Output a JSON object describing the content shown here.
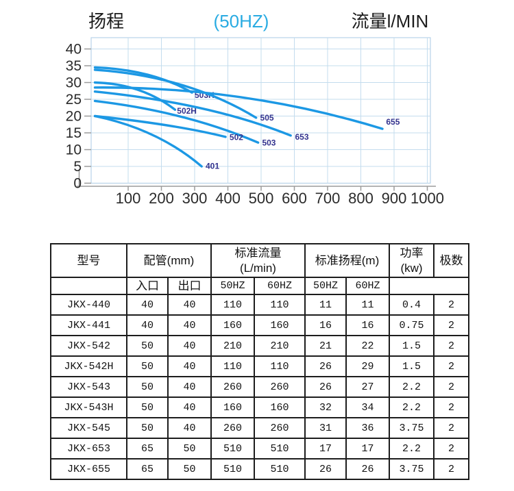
{
  "chart": {
    "ylabel_title": "扬程",
    "freq_title": "(50HZ)",
    "xlabel_title": "流量l/MIN",
    "colors": {
      "curve": "#1c98e4",
      "grid": "#c3dcee",
      "plot_border": "#b7d3e8",
      "axis_line": "#9b9b9b",
      "tick_text": "#2b2b2b",
      "freq_text": "#29abe2",
      "curve_label": "#32328e"
    },
    "x_ticks": [
      100,
      200,
      300,
      400,
      500,
      600,
      700,
      800,
      900,
      1000
    ],
    "y_ticks": [
      0,
      5,
      10,
      15,
      20,
      25,
      30,
      35,
      40
    ]
  },
  "chart_data": {
    "type": "line",
    "title": "(50HZ)",
    "xlabel": "流量l/MIN",
    "ylabel": "扬程",
    "xlim": [
      0,
      1080
    ],
    "ylim": [
      0,
      43
    ],
    "grid": true,
    "legend_position": "none",
    "series": [
      {
        "name": "503H",
        "points": [
          [
            0,
            34.5
          ],
          [
            160,
            32.3
          ],
          [
            292,
            27.0
          ]
        ],
        "label_at": [
          300,
          25.4
        ]
      },
      {
        "name": "505",
        "points": [
          [
            0,
            33.8
          ],
          [
            260,
            29.3
          ],
          [
            485,
            19.5
          ]
        ],
        "label_at": [
          497,
          18.7
        ]
      },
      {
        "name": "502H",
        "points": [
          [
            0,
            30.0
          ],
          [
            130,
            27.8
          ],
          [
            241,
            21.9
          ]
        ],
        "label_at": [
          247,
          20.7
        ]
      },
      {
        "name": "655",
        "points": [
          [
            0,
            28.5
          ],
          [
            440,
            25.6
          ],
          [
            865,
            16.2
          ]
        ],
        "label_at": [
          876,
          17.4
        ]
      },
      {
        "name": "653",
        "points": [
          [
            0,
            27.3
          ],
          [
            320,
            22.3
          ],
          [
            589,
            14.2
          ]
        ],
        "label_at": [
          602,
          13.0
        ]
      },
      {
        "name": "503",
        "points": [
          [
            0,
            24.5
          ],
          [
            260,
            19.8
          ],
          [
            491,
            12.1
          ]
        ],
        "label_at": [
          503,
          11.2
        ]
      },
      {
        "name": "502",
        "points": [
          [
            0,
            20.0
          ],
          [
            220,
            17.2
          ],
          [
            393,
            13.8
          ]
        ],
        "label_at": [
          405,
          12.9
        ]
      },
      {
        "name": "401",
        "points": [
          [
            0,
            20.0
          ],
          [
            175,
            14.3
          ],
          [
            321,
            5.0
          ]
        ],
        "label_at": [
          333,
          4.3
        ]
      }
    ]
  },
  "table": {
    "header": {
      "model": "型号",
      "piping": "配管(mm)",
      "inlet": "入口",
      "outlet": "出口",
      "flow_line1": "标准流量",
      "flow_line2": "(L/min)",
      "flow_50": "50HZ",
      "flow_60": "60HZ",
      "head": "标准扬程(m)",
      "head_50": "50HZ",
      "head_60": "60HZ",
      "power_line1": "功率",
      "power_line2": "(kw)",
      "poles": "极数"
    },
    "rows": [
      [
        "JKX-440",
        "40",
        "40",
        "110",
        "110",
        "11",
        "11",
        "0.4",
        "2"
      ],
      [
        "JKX-441",
        "40",
        "40",
        "160",
        "160",
        "16",
        "16",
        "0.75",
        "2"
      ],
      [
        "JKX-542",
        "50",
        "40",
        "210",
        "210",
        "21",
        "22",
        "1.5",
        "2"
      ],
      [
        "JKX-542H",
        "50",
        "40",
        "110",
        "110",
        "26",
        "29",
        "1.5",
        "2"
      ],
      [
        "JKX-543",
        "50",
        "40",
        "260",
        "260",
        "26",
        "27",
        "2.2",
        "2"
      ],
      [
        "JKX-543H",
        "50",
        "40",
        "160",
        "160",
        "32",
        "34",
        "2.2",
        "2"
      ],
      [
        "JKX-545",
        "50",
        "40",
        "260",
        "260",
        "31",
        "36",
        "3.75",
        "2"
      ],
      [
        "JKX-653",
        "65",
        "50",
        "510",
        "510",
        "17",
        "17",
        "2.2",
        "2"
      ],
      [
        "JKX-655",
        "65",
        "50",
        "510",
        "510",
        "26",
        "26",
        "3.75",
        "2"
      ]
    ]
  }
}
